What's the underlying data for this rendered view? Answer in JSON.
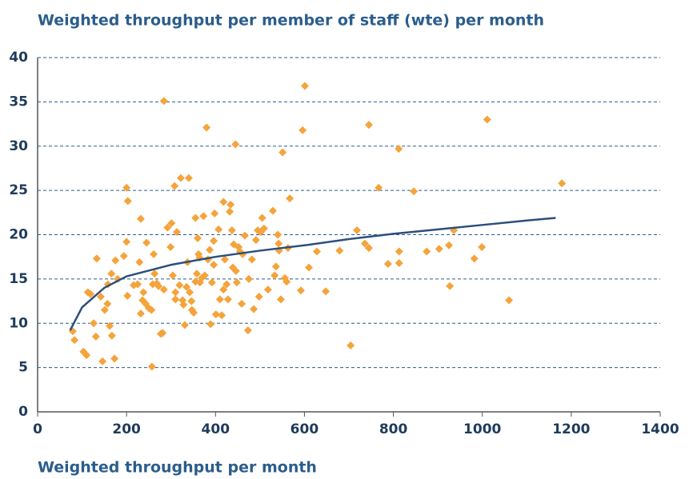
{
  "chart_data": {
    "type": "scatter",
    "title": "Weighted throughput per member of staff (wte) per month",
    "x_label": "Weighted throughput per month",
    "xlim": [
      0,
      1400
    ],
    "xticks": [
      0,
      200,
      400,
      600,
      800,
      1000,
      1200,
      1400
    ],
    "ylim": [
      0,
      40
    ],
    "yticks": [
      0,
      5,
      10,
      15,
      20,
      25,
      30,
      35,
      40
    ],
    "grid": true,
    "series": [
      {
        "type": "scatter",
        "color": "#f5a33b",
        "x": [
          79,
          83,
          103,
          110,
          113,
          119,
          126,
          131,
          133,
          142,
          146,
          151,
          157,
          158,
          162,
          166,
          167,
          173,
          175,
          180,
          194,
          200,
          202,
          200,
          203,
          216,
          225,
          229,
          232,
          232,
          236,
          238,
          243,
          245,
          250,
          256,
          257,
          259,
          261,
          263,
          268,
          272,
          277,
          281,
          284,
          284,
          292,
          299,
          301,
          304,
          308,
          310,
          310,
          313,
          319,
          322,
          326,
          328,
          331,
          335,
          337,
          340,
          342,
          346,
          347,
          351,
          355,
          355,
          358,
          360,
          362,
          364,
          365,
          369,
          373,
          376,
          380,
          383,
          387,
          389,
          392,
          396,
          396,
          398,
          401,
          407,
          410,
          414,
          418,
          418,
          421,
          425,
          428,
          432,
          434,
          437,
          439,
          441,
          445,
          446,
          448,
          452,
          455,
          459,
          461,
          466,
          473,
          475,
          482,
          486,
          491,
          495,
          498,
          502,
          505,
          509,
          518,
          529,
          533,
          536,
          540,
          542,
          543,
          547,
          551,
          556,
          560,
          563,
          567,
          592,
          596,
          601,
          610,
          628,
          648,
          679,
          704,
          718,
          736,
          745,
          745,
          767,
          788,
          813,
          812,
          813,
          846,
          875,
          903,
          925,
          927,
          936,
          982,
          999,
          1011,
          1060,
          1179
        ],
        "values": [
          9.1,
          8.1,
          6.8,
          6.4,
          13.5,
          13.3,
          10.0,
          8.5,
          17.3,
          13.0,
          5.7,
          11.5,
          12.2,
          14.4,
          9.7,
          15.6,
          8.6,
          6.0,
          17.1,
          15.0,
          17.6,
          19.2,
          13.1,
          25.3,
          23.8,
          14.3,
          14.4,
          16.9,
          21.8,
          11.1,
          12.6,
          13.5,
          12.2,
          19.1,
          11.7,
          11.5,
          5.1,
          14.4,
          17.8,
          15.6,
          14.5,
          14.2,
          8.8,
          8.9,
          13.8,
          35.1,
          20.8,
          18.6,
          21.3,
          15.4,
          25.5,
          13.5,
          12.7,
          20.3,
          14.3,
          26.4,
          12.6,
          12.1,
          9.8,
          14.1,
          16.9,
          26.4,
          13.5,
          12.5,
          11.5,
          11.2,
          21.9,
          14.7,
          15.6,
          19.6,
          17.8,
          17.4,
          14.6,
          15.1,
          22.1,
          15.4,
          32.1,
          17.2,
          18.3,
          9.9,
          14.6,
          16.6,
          19.3,
          22.4,
          11.0,
          20.6,
          12.7,
          10.9,
          23.7,
          13.8,
          17.2,
          14.4,
          12.7,
          22.6,
          23.4,
          20.5,
          16.3,
          18.9,
          30.2,
          15.9,
          14.6,
          18.6,
          18.1,
          12.2,
          17.8,
          19.9,
          9.2,
          15.0,
          17.2,
          11.6,
          19.4,
          20.5,
          13.0,
          20.3,
          21.9,
          20.7,
          13.8,
          22.7,
          15.4,
          16.4,
          20.0,
          19.0,
          18.2,
          12.7,
          29.3,
          15.1,
          14.7,
          18.5,
          24.1,
          13.7,
          31.8,
          36.8,
          16.3,
          18.1,
          13.6,
          18.2,
          7.5,
          20.5,
          19.0,
          18.5,
          32.4,
          25.3,
          16.7,
          16.8,
          29.7,
          18.1,
          24.9,
          18.1,
          18.4,
          18.8,
          14.2,
          20.5,
          17.3,
          18.6,
          33.0,
          12.6,
          25.8
        ]
      },
      {
        "type": "line",
        "color": "#2c4f7c",
        "x": [
          73,
          100,
          150,
          200,
          300,
          400,
          500,
          600,
          700,
          800,
          900,
          1000,
          1100,
          1165
        ],
        "values": [
          9.2,
          11.8,
          14.0,
          15.3,
          16.6,
          17.5,
          18.2,
          18.8,
          19.5,
          20.1,
          20.6,
          21.1,
          21.6,
          21.9
        ]
      }
    ]
  }
}
